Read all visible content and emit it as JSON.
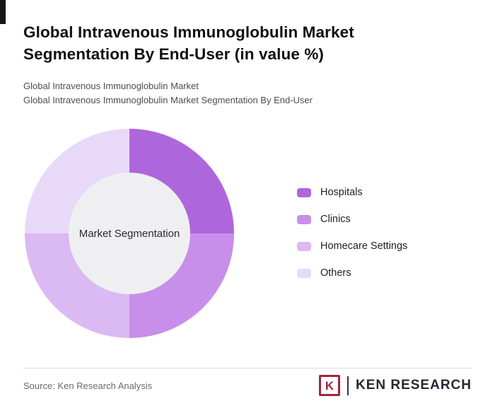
{
  "header": {
    "title": "Global Intravenous Immunoglobulin Market Segmentation By End-User (in value %)",
    "subtitle_line1": "Global Intravenous Immunoglobulin Market",
    "subtitle_line2": "Global Intravenous Immunoglobulin Market Segmentation By End-User"
  },
  "chart_data": {
    "type": "pie",
    "donut": true,
    "title": "Global Intravenous Immunoglobulin Market Segmentation By End-User (in value %)",
    "center_label": "Market Segmentation",
    "categories": [
      "Hospitals",
      "Clinics",
      "Homecare Settings",
      "Others"
    ],
    "values": [
      25,
      25,
      25,
      25
    ],
    "colors": [
      "#AE66DD",
      "#C78FEA",
      "#DBB9F3",
      "#E9D9F8"
    ],
    "start_angle_deg": 0,
    "direction": "clockwise",
    "legend_position": "right",
    "center_fill": "#efeff1"
  },
  "footer": {
    "source": "Source: Ken Research Analysis",
    "logo_letter": "K",
    "logo_text": "KEN RESEARCH",
    "logo_color": "#9C2740",
    "logo_text_color": "#2B2533"
  },
  "accent_color": "#161616"
}
